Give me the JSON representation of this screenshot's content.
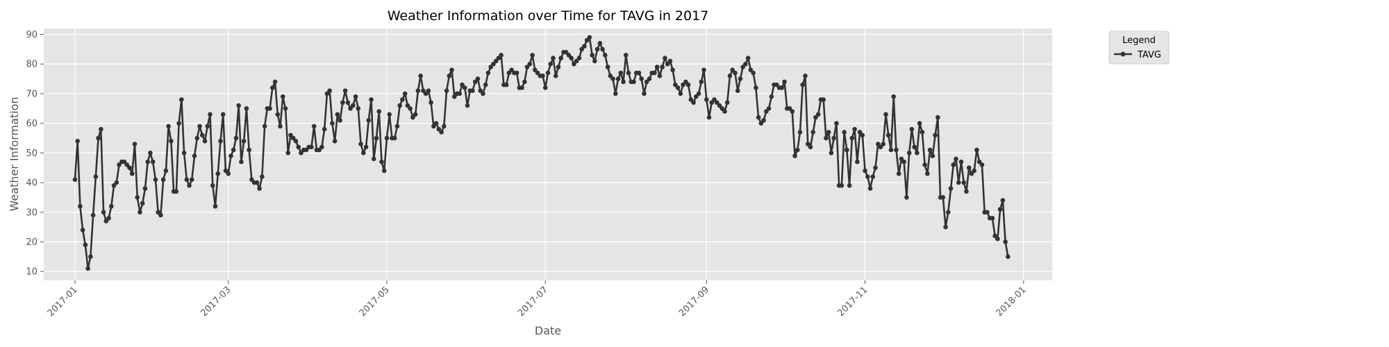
{
  "chart_data": {
    "type": "line",
    "title": "Weather Information over Time for TAVG in 2017",
    "xlabel": "Date",
    "ylabel": "Weather Information",
    "x_range": [
      "2016-12-20",
      "2018-01-12"
    ],
    "ylim": [
      7,
      92
    ],
    "x_ticks": [
      "2017-01",
      "2017-03",
      "2017-05",
      "2017-07",
      "2017-09",
      "2017-11",
      "2018-01"
    ],
    "y_ticks": [
      10,
      20,
      30,
      40,
      50,
      60,
      70,
      80,
      90
    ],
    "grid": true,
    "background": "#e5e5e5",
    "legend": {
      "title": "Legend",
      "placement": "upper right, outside plot"
    },
    "series": [
      {
        "name": "TAVG",
        "color": "#333333",
        "marker": "circle",
        "start_date": "2017-01-01",
        "values": [
          41,
          54,
          32,
          24,
          19,
          11,
          15,
          29,
          42,
          55,
          58,
          30,
          27,
          28,
          32,
          39,
          40,
          46,
          47,
          47,
          46,
          45,
          43,
          53,
          35,
          30,
          33,
          38,
          47,
          50,
          47,
          41,
          30,
          29,
          41,
          44,
          59,
          54,
          37,
          37,
          60,
          68,
          50,
          41,
          39,
          41,
          49,
          55,
          59,
          56,
          54,
          59,
          63,
          39,
          32,
          43,
          54,
          63,
          44,
          43,
          49,
          51,
          55,
          66,
          47,
          54,
          65,
          51,
          41,
          40,
          40,
          38,
          42,
          59,
          65,
          65,
          72,
          74,
          63,
          59,
          69,
          65,
          50,
          56,
          55,
          54,
          52,
          50,
          51,
          51,
          52,
          52,
          59,
          51,
          51,
          52,
          58,
          70,
          71,
          60,
          54,
          63,
          61,
          67,
          71,
          67,
          65,
          66,
          69,
          65,
          53,
          50,
          52,
          61,
          68,
          48,
          55,
          64,
          47,
          44,
          55,
          63,
          55,
          55,
          59,
          66,
          68,
          70,
          66,
          65,
          62,
          63,
          71,
          76,
          71,
          70,
          71,
          67,
          59,
          60,
          58,
          57,
          59,
          71,
          76,
          78,
          69,
          70,
          70,
          73,
          72,
          66,
          71,
          71,
          74,
          75,
          71,
          70,
          73,
          77,
          79,
          80,
          81,
          82,
          83,
          73,
          73,
          77,
          78,
          77,
          77,
          72,
          72,
          74,
          79,
          80,
          83,
          78,
          77,
          76,
          76,
          72,
          77,
          80,
          82,
          76,
          79,
          82,
          84,
          84,
          83,
          82,
          80,
          81,
          82,
          85,
          86,
          88,
          89,
          83,
          81,
          85,
          87,
          85,
          83,
          79,
          76,
          75,
          70,
          75,
          77,
          74,
          83,
          77,
          74,
          74,
          77,
          77,
          75,
          70,
          74,
          75,
          77,
          77,
          79,
          76,
          79,
          82,
          80,
          81,
          78,
          73,
          72,
          70,
          73,
          74,
          73,
          68,
          67,
          69,
          70,
          74,
          78,
          68,
          62,
          67,
          68,
          67,
          66,
          65,
          64,
          67,
          76,
          78,
          77,
          71,
          75,
          79,
          80,
          82,
          78,
          77,
          72,
          62,
          60,
          61,
          64,
          65,
          69,
          73,
          73,
          72,
          72,
          74,
          65,
          65,
          64,
          49,
          51,
          57,
          73,
          76,
          53,
          52,
          57,
          62,
          63,
          68,
          68,
          55,
          57,
          50,
          55,
          60,
          39,
          39,
          57,
          51,
          39,
          55,
          58,
          47,
          57,
          56,
          44,
          42,
          38,
          42,
          45,
          53,
          52,
          53,
          63,
          56,
          51,
          69,
          51,
          43,
          48,
          47,
          35,
          50,
          58,
          52,
          50,
          60,
          57,
          46,
          43,
          51,
          49,
          56,
          62,
          35,
          35,
          25,
          30,
          38,
          46,
          48,
          40,
          47,
          40,
          37,
          45,
          43,
          44,
          51,
          47,
          46,
          30,
          30,
          28,
          28,
          22,
          21,
          31,
          34,
          20,
          15
        ]
      }
    ]
  }
}
